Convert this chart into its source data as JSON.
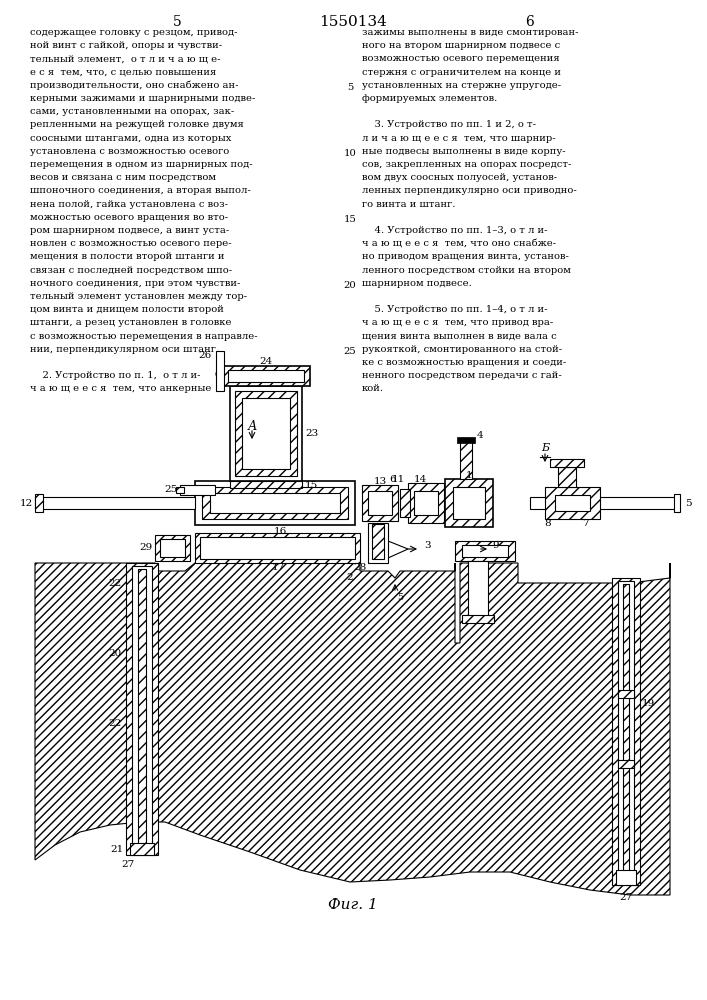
{
  "page_number_left": "5",
  "page_number_center": "1550134",
  "page_number_right": "6",
  "left_column_lines": [
    "содержащее головку с резцом, привод-",
    "ной винт с гайкой, опоры и чувстви-",
    "тельный элемент,  о т л и ч а ю щ е-",
    "е с я  тем, что, с целью повышения",
    "производительности, оно снабжено ан-",
    "керными зажимами и шарнирными подве-",
    "сами, установленными на опорах, зак-",
    "репленными на режущей головке двумя",
    "соосными штангами, одна из которых",
    "установлена с возможностью осевого",
    "перемещения в одном из шарнирных под-",
    "весов и связана с ним посредством",
    "шпоночного соединения, а вторая выпол-",
    "нена полой, гайка установлена с воз-",
    "можностью осевого вращения во вто-",
    "ром шарнирном подвесе, а винт уста-",
    "новлен с возможностью осевого пере-",
    "мещения в полости второй штанги и",
    "связан с последней посредством шпо-",
    "ночного соединения, при этом чувстви-",
    "тельный элемент установлен между тор-",
    "цом винта и днищем полости второй",
    "штанги, а резец установлен в головке",
    "с возможностью перемещения в направле-",
    "нии, перпендикулярном оси штанг.",
    "",
    "    2. Устройство по п. 1,  о т л и-",
    "ч а ю щ е е с я  тем, что анкерные"
  ],
  "right_column_lines": [
    "зажимы выполнены в виде смонтирован-",
    "ного на втором шарнирном подвесе с",
    "возможностью осевого перемещения",
    "стержня с ограничителем на конце и",
    "установленных на стержне упругоде-",
    "формируемых элементов.",
    "",
    "    3. Устройство по пп. 1 и 2, о т-",
    "л и ч а ю щ е е с я  тем, что шарнир-",
    "ные подвесы выполнены в виде корпу-",
    "сов, закрепленных на опорах посредст-",
    "вом двух соосных полуосей, установ-",
    "ленных перпендикулярно оси приводно-",
    "го винта и штанг.",
    "",
    "    4. Устройство по пп. 1–3, о т л и-",
    "ч а ю щ е е с я  тем, что оно снабже-",
    "но приводом вращения винта, установ-",
    "ленного посредством стойки на втором",
    "шарнирном подвесе.",
    "",
    "    5. Устройство по пп. 1–4, о т л и-",
    "ч а ю щ е е с я  тем, что привод вра-",
    "щения винта выполнен в виде вала с",
    "рукояткой, смонтированного на стой-",
    "ке с возможностью вращения и соеди-",
    "ненного посредством передачи с гай-",
    "кой."
  ],
  "center_line_numbers": [
    5,
    10,
    15,
    20,
    25
  ],
  "figure_caption": "Фиг. 1",
  "bg": "#ffffff",
  "fg": "#000000"
}
